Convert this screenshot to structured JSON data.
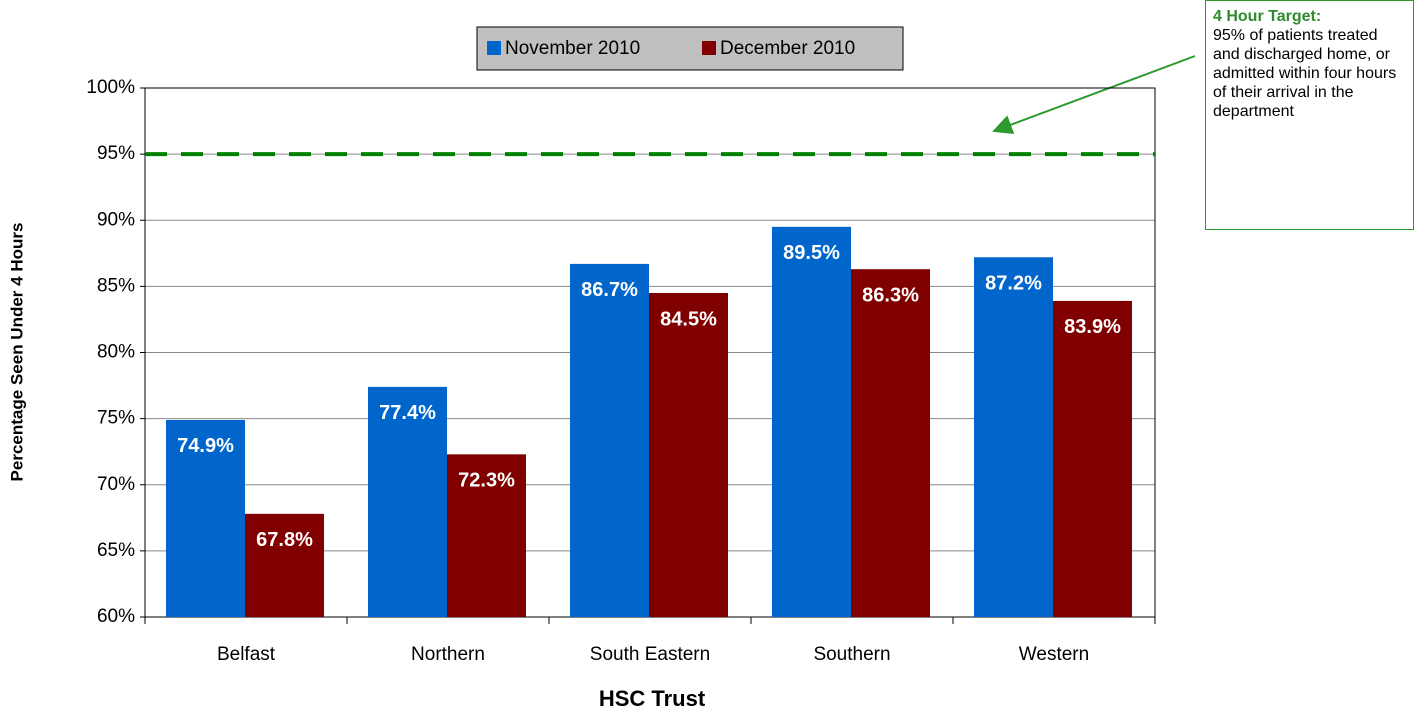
{
  "chart_data": {
    "type": "bar",
    "categories": [
      "Belfast",
      "Northern",
      "South Eastern",
      "Southern",
      "Western"
    ],
    "series": [
      {
        "name": "November 2010",
        "color": "#0066cc",
        "values": [
          74.9,
          77.4,
          86.7,
          89.5,
          87.2
        ],
        "value_labels": [
          "74.9%",
          "77.4%",
          "86.7%",
          "89.5%",
          "87.2%"
        ]
      },
      {
        "name": "December 2010",
        "color": "#800000",
        "values": [
          67.8,
          72.3,
          84.5,
          86.3,
          83.9
        ],
        "value_labels": [
          "67.8%",
          "72.3%",
          "84.5%",
          "86.3%",
          "83.9%"
        ]
      }
    ],
    "ylim": [
      60,
      100
    ],
    "yticks": [
      {
        "value": 60,
        "label": "60%"
      },
      {
        "value": 65,
        "label": "65%"
      },
      {
        "value": 70,
        "label": "70%"
      },
      {
        "value": 75,
        "label": "75%"
      },
      {
        "value": 80,
        "label": "80%"
      },
      {
        "value": 85,
        "label": "85%"
      },
      {
        "value": 90,
        "label": "90%"
      },
      {
        "value": 95,
        "label": "95%"
      },
      {
        "value": 100,
        "label": "100%"
      }
    ],
    "grid": true,
    "xlabel": "HSC Trust",
    "ylabel": "Percentage Seen Under 4 Hours",
    "target_line": {
      "value": 95,
      "color": "#008000"
    },
    "annotation": {
      "title": "4 Hour Target:",
      "text": "95% of patients treated and discharged home, or admitted within four hours of their arrival in the department"
    },
    "legend_position": "top"
  }
}
